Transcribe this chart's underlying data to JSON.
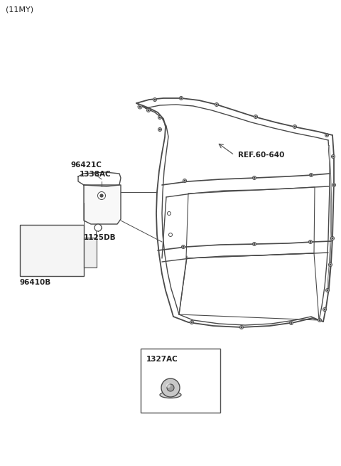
{
  "title": "(11MY)",
  "bg_color": "#ffffff",
  "line_color": "#4a4a4a",
  "text_color": "#222222",
  "labels": {
    "ref": "REF.60-640",
    "96421C": "96421C",
    "1338AC": "1338AC",
    "96410B": "96410B",
    "1125DB": "1125DB",
    "1327AC": "1327AC"
  },
  "figsize": [
    4.8,
    6.55
  ],
  "dpi": 100
}
